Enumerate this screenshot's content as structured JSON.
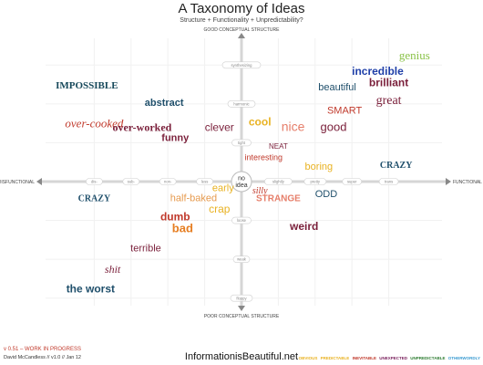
{
  "header": {
    "title": "A Taxonomy of Ideas",
    "subtitle": "Structure + Functionality + Unpredictability?"
  },
  "footer": {
    "version": "v 0.51 – WORK IN PROGRESS",
    "credit": "David McCandless // v1.0 // Jan 12",
    "brand": "InformationisBeautiful.net",
    "legend": [
      {
        "label": "OBVIOUS",
        "color": "#e9b222"
      },
      {
        "label": "PREDICTABLE",
        "color": "#e9b222"
      },
      {
        "label": "INEVITABLE",
        "color": "#c0392b"
      },
      {
        "label": "UNEXPECTED",
        "color": "#7a1f5c"
      },
      {
        "label": "UNPREDICTABLE",
        "color": "#2e7d32"
      },
      {
        "label": "OTHERWORDLY",
        "color": "#3a9bd1"
      }
    ]
  },
  "chart_data": {
    "type": "scatter",
    "axes": {
      "x_left": "DISFUNCTIONAL",
      "x_right": "FUNCTIONAL",
      "y_top": "GOOD CONCEPTUAL STRUCTURE",
      "y_bottom": "POOR CONCEPTUAL STRUCTURE",
      "center": [
        "no",
        "idea"
      ],
      "x_range": [
        -5,
        5
      ],
      "y_range": [
        -7,
        7
      ],
      "x_ticks_left": [
        {
          "x": -4,
          "label": "dis-"
        },
        {
          "x": -3,
          "label": "sub-"
        },
        {
          "x": -2,
          "label": "non-"
        },
        {
          "x": -1,
          "label": "less"
        }
      ],
      "x_ticks_right": [
        {
          "x": 1,
          "label": "slightly"
        },
        {
          "x": 2,
          "label": "pretty"
        },
        {
          "x": 3,
          "label": "super"
        },
        {
          "x": 4,
          "label": "trans"
        }
      ],
      "y_ticks_top": [
        {
          "y": 6,
          "label": "synthesizing"
        },
        {
          "y": 4,
          "label": "harmonic"
        },
        {
          "y": 2,
          "label": "tight"
        }
      ],
      "y_ticks_bottom": [
        {
          "y": -2,
          "label": "loose"
        },
        {
          "y": -4,
          "label": "weak"
        },
        {
          "y": -6,
          "label": "floppy"
        }
      ]
    },
    "ideas": [
      {
        "word": "genius",
        "x": 4.7,
        "y": 6.3,
        "color": "#8bc34a",
        "size": 13,
        "font": "serif",
        "weight": "normal"
      },
      {
        "word": "incredible",
        "x": 3.7,
        "y": 5.5,
        "color": "#1f3fa8",
        "size": 12,
        "font": "sans",
        "weight": "bold"
      },
      {
        "word": "IMPOSSIBLE",
        "x": -4.2,
        "y": 4.8,
        "color": "#17495b",
        "size": 11,
        "font": "serif",
        "weight": "bold"
      },
      {
        "word": "brilliant",
        "x": 4.0,
        "y": 4.9,
        "color": "#7a1f3a",
        "size": 12,
        "font": "sans",
        "weight": "bold"
      },
      {
        "word": "beautiful",
        "x": 2.6,
        "y": 4.7,
        "color": "#1f4f6b",
        "size": 11,
        "font": "sans",
        "weight": "normal"
      },
      {
        "word": "great",
        "x": 4.0,
        "y": 4.0,
        "color": "#7a1f3a",
        "size": 14,
        "font": "serif",
        "weight": "normal"
      },
      {
        "word": "abstract",
        "x": -2.1,
        "y": 3.9,
        "color": "#1f4f6b",
        "size": 11,
        "font": "sans",
        "weight": "bold"
      },
      {
        "word": "SMART",
        "x": 2.8,
        "y": 3.5,
        "color": "#c0392b",
        "size": 11,
        "font": "sans",
        "weight": "normal"
      },
      {
        "word": "over-cooked",
        "x": -4.0,
        "y": 2.8,
        "color": "#c0392b",
        "size": 13,
        "font": "serif",
        "weight": "normal"
      },
      {
        "word": "over-worked",
        "x": -2.7,
        "y": 2.6,
        "color": "#7a1f3a",
        "size": 12,
        "font": "serif",
        "weight": "bold"
      },
      {
        "word": "cool",
        "x": 0.5,
        "y": 2.9,
        "color": "#e9b222",
        "size": 12,
        "font": "sans",
        "weight": "bold"
      },
      {
        "word": "nice",
        "x": 1.4,
        "y": 2.6,
        "color": "#e67e6a",
        "size": 14,
        "font": "sans",
        "weight": "normal"
      },
      {
        "word": "good",
        "x": 2.5,
        "y": 2.6,
        "color": "#7a1f3a",
        "size": 13,
        "font": "sans",
        "weight": "normal"
      },
      {
        "word": "clever",
        "x": -0.6,
        "y": 2.6,
        "color": "#7a1f3a",
        "size": 12,
        "font": "sans",
        "weight": "normal"
      },
      {
        "word": "funny",
        "x": -1.8,
        "y": 2.1,
        "color": "#7a1f3a",
        "size": 11,
        "font": "sans",
        "weight": "bold"
      },
      {
        "word": "NEAT",
        "x": 1.0,
        "y": 1.7,
        "color": "#7a1f3a",
        "size": 8,
        "font": "sans",
        "weight": "normal"
      },
      {
        "word": "interesting",
        "x": 0.6,
        "y": 1.1,
        "color": "#c0392b",
        "size": 9,
        "font": "sans",
        "weight": "normal"
      },
      {
        "word": "boring",
        "x": 2.1,
        "y": 0.6,
        "color": "#e9b222",
        "size": 11,
        "font": "sans",
        "weight": "normal"
      },
      {
        "word": "CRAZY",
        "x": 4.2,
        "y": 0.7,
        "color": "#1f4f6b",
        "size": 10,
        "font": "serif",
        "weight": "bold"
      },
      {
        "word": "CRAZY",
        "x": -4.0,
        "y": -1.0,
        "color": "#1f4f6b",
        "size": 10,
        "font": "serif",
        "weight": "bold"
      },
      {
        "word": "early",
        "x": -0.5,
        "y": -0.5,
        "color": "#e9b222",
        "size": 11,
        "font": "sans",
        "weight": "normal"
      },
      {
        "word": "silly",
        "x": 0.5,
        "y": -0.6,
        "color": "#c0392b",
        "size": 10,
        "font": "serif",
        "weight": "normal"
      },
      {
        "word": "STRANGE",
        "x": 1.0,
        "y": -1.0,
        "color": "#e67e6a",
        "size": 10,
        "font": "sans",
        "weight": "bold"
      },
      {
        "word": "ODD",
        "x": 2.3,
        "y": -0.8,
        "color": "#1f4f6b",
        "size": 11,
        "font": "sans",
        "weight": "normal"
      },
      {
        "word": "half-baked",
        "x": -1.3,
        "y": -1.0,
        "color": "#e69a4e",
        "size": 11,
        "font": "sans",
        "weight": "normal"
      },
      {
        "word": "crap",
        "x": -0.6,
        "y": -1.6,
        "color": "#e9b222",
        "size": 12,
        "font": "sans",
        "weight": "normal"
      },
      {
        "word": "dumb",
        "x": -1.8,
        "y": -2.0,
        "color": "#c0392b",
        "size": 12,
        "font": "sans",
        "weight": "bold"
      },
      {
        "word": "bad",
        "x": -1.6,
        "y": -2.6,
        "color": "#e67e22",
        "size": 13,
        "font": "sans",
        "weight": "bold"
      },
      {
        "word": "weird",
        "x": 1.7,
        "y": -2.5,
        "color": "#7a1f3a",
        "size": 12,
        "font": "sans",
        "weight": "bold"
      },
      {
        "word": "terrible",
        "x": -2.6,
        "y": -3.6,
        "color": "#7a1f3a",
        "size": 11,
        "font": "sans",
        "weight": "normal"
      },
      {
        "word": "shit",
        "x": -3.5,
        "y": -4.7,
        "color": "#7a1f3a",
        "size": 12,
        "font": "serif",
        "weight": "normal"
      },
      {
        "word": "the worst",
        "x": -4.1,
        "y": -5.7,
        "color": "#1f4f6b",
        "size": 12,
        "font": "sans",
        "weight": "bold"
      }
    ]
  }
}
